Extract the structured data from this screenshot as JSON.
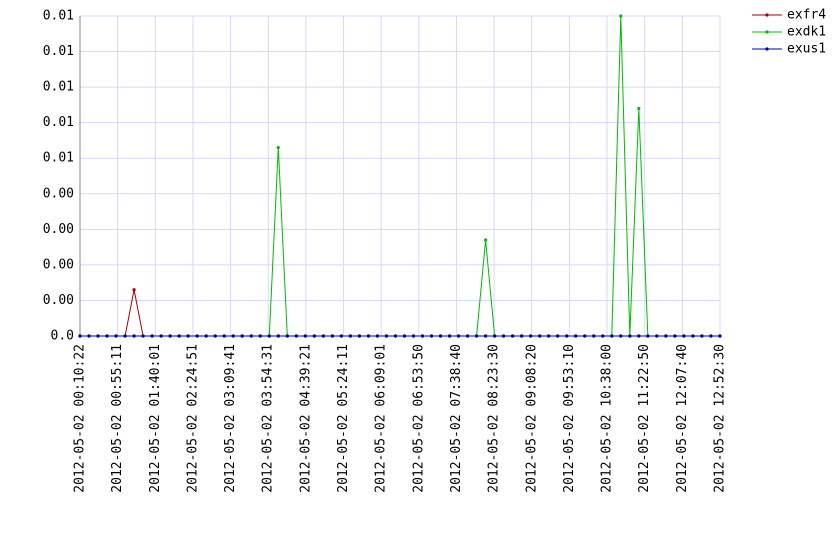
{
  "chart_data": {
    "type": "line",
    "x": [
      622,
      1266,
      1910,
      2554,
      3198,
      3842,
      4486,
      5130,
      5774,
      6418,
      7062,
      7706,
      8350,
      8994,
      9638,
      10282,
      10926,
      11570,
      12214,
      12858,
      13502,
      14146,
      14790,
      15434,
      16078,
      16722,
      17366,
      18010,
      18654,
      19298,
      19942,
      20586,
      21230,
      21874,
      22518,
      23162,
      23806,
      24450,
      25094,
      25738,
      26382,
      27026,
      27670,
      28314,
      28958,
      29602,
      30246,
      30890,
      31534,
      32178,
      32822,
      33466,
      34110,
      34754,
      35398,
      36042,
      36686,
      37330,
      37974,
      38618,
      39262,
      39906,
      40550,
      41194,
      41838,
      42482,
      43126,
      43770,
      44414,
      45058,
      45702,
      46346
    ],
    "series": [
      {
        "name": "exfr4",
        "color": "#aa0000",
        "values": [
          0,
          0,
          0,
          0,
          0,
          0,
          0.0013,
          0,
          0,
          0,
          0,
          0,
          0,
          0,
          0,
          0,
          0,
          0,
          0,
          0,
          0,
          0,
          0,
          0,
          0,
          0,
          0,
          0,
          0,
          0,
          0,
          0,
          0,
          0,
          0,
          0,
          0,
          0,
          0,
          0,
          0,
          0,
          0,
          0,
          0,
          0,
          0,
          0,
          0,
          0,
          0,
          0,
          0,
          0,
          0,
          0,
          0,
          0,
          0,
          0,
          0,
          0,
          0,
          0,
          0,
          0,
          0,
          0,
          0,
          0,
          0,
          0
        ]
      },
      {
        "name": "exdk1",
        "color": "#00bb00",
        "values": [
          0,
          0,
          0,
          0,
          0,
          0,
          0,
          0,
          0,
          0,
          0,
          0,
          0,
          0,
          0,
          0,
          0,
          0,
          0,
          0,
          0,
          0,
          0.0053,
          0,
          0,
          0,
          0,
          0,
          0,
          0,
          0,
          0,
          0,
          0,
          0,
          0,
          0,
          0,
          0,
          0,
          0,
          0,
          0,
          0,
          0,
          0.0027,
          0,
          0,
          0,
          0,
          0,
          0,
          0,
          0,
          0,
          0,
          0,
          0,
          0,
          0,
          0.009,
          0,
          0.0064,
          0,
          0,
          0,
          0,
          0,
          0,
          0,
          0,
          0
        ]
      },
      {
        "name": "exus1",
        "color": "#0000aa",
        "values": [
          0,
          0,
          0,
          0,
          0,
          0,
          0,
          0,
          0,
          0,
          0,
          0,
          0,
          0,
          0,
          0,
          0,
          0,
          0,
          0,
          0,
          0,
          0,
          0,
          0,
          0,
          0,
          0,
          0,
          0,
          0,
          0,
          0,
          0,
          0,
          0,
          0,
          0,
          0,
          0,
          0,
          0,
          0,
          0,
          0,
          0,
          0,
          0,
          0,
          0,
          0,
          0,
          0,
          0,
          0,
          0,
          0,
          0,
          0,
          0,
          0,
          0,
          0,
          0,
          0,
          0,
          0,
          0,
          0,
          0,
          0,
          0
        ]
      }
    ],
    "xlim": [
      622,
      46350
    ],
    "xticks": [
      {
        "value": 622,
        "label": "2012-05-02  00:10:22"
      },
      {
        "value": 3311,
        "label": "2012-05-02  00:55:11"
      },
      {
        "value": 6001,
        "label": "2012-05-02  01:40:01"
      },
      {
        "value": 8691,
        "label": "2012-05-02  02:24:51"
      },
      {
        "value": 11381,
        "label": "2012-05-02  03:09:41"
      },
      {
        "value": 14071,
        "label": "2012-05-02  03:54:31"
      },
      {
        "value": 16761,
        "label": "2012-05-02  04:39:21"
      },
      {
        "value": 19451,
        "label": "2012-05-02  05:24:11"
      },
      {
        "value": 22141,
        "label": "2012-05-02  06:09:01"
      },
      {
        "value": 24830,
        "label": "2012-05-02  06:53:50"
      },
      {
        "value": 27520,
        "label": "2012-05-02  07:38:40"
      },
      {
        "value": 30210,
        "label": "2012-05-02  08:23:30"
      },
      {
        "value": 32900,
        "label": "2012-05-02  09:08:20"
      },
      {
        "value": 35590,
        "label": "2012-05-02  09:53:10"
      },
      {
        "value": 38280,
        "label": "2012-05-02  10:38:00"
      },
      {
        "value": 40970,
        "label": "2012-05-02  11:22:50"
      },
      {
        "value": 43660,
        "label": "2012-05-02  12:07:40"
      },
      {
        "value": 46350,
        "label": "2012-05-02  12:52:30"
      }
    ],
    "ylim": [
      0,
      0.009
    ],
    "yticks": [
      {
        "value": 0,
        "label": "0.0"
      },
      {
        "value": 0.001,
        "label": "0.00"
      },
      {
        "value": 0.002,
        "label": "0.00"
      },
      {
        "value": 0.003,
        "label": "0.00"
      },
      {
        "value": 0.004,
        "label": "0.00"
      },
      {
        "value": 0.005,
        "label": "0.01"
      },
      {
        "value": 0.006,
        "label": "0.01"
      },
      {
        "value": 0.007,
        "label": "0.01"
      },
      {
        "value": 0.008,
        "label": "0.01"
      },
      {
        "value": 0.009,
        "label": "0.01"
      }
    ],
    "grid": true,
    "legend": "right"
  }
}
